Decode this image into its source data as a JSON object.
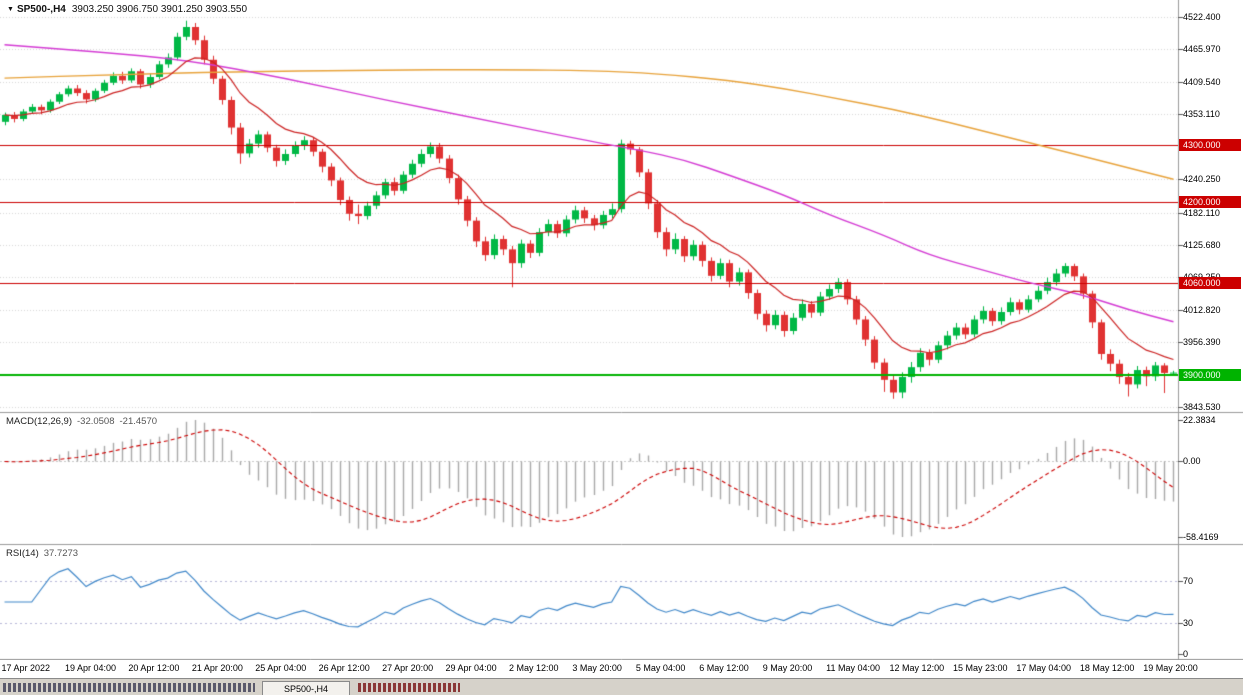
{
  "header": {
    "menu_icon": "▼",
    "symbol_period": "SP500-,H4",
    "ohlc": "3903.250 3906.750 3901.250 3903.550"
  },
  "colors": {
    "background": "#ffffff",
    "up": "#00b845",
    "down": "#e03232",
    "grid": "#d7d7d7",
    "separator": "#9a9a9a",
    "axis_text": "#000000",
    "macd_hist": "#a9a9a9",
    "macd_signal": "#cc0000",
    "macd_zero": "#c9c9c9",
    "rsi": "#3f87c9",
    "rsi_levels": "#b9b9d9"
  },
  "chart_data": {
    "type": "candlestick",
    "symbol": "SP500-",
    "timeframe": "H4",
    "y_axis": {
      "min": 3835,
      "max": 4552,
      "ticks": [
        {
          "price": 4522.4,
          "label": "4522.400"
        },
        {
          "price": 4465.97,
          "label": "4465.970"
        },
        {
          "price": 4409.54,
          "label": "4409.540"
        },
        {
          "price": 4353.11,
          "label": "4353.110"
        },
        {
          "price": 4240.25,
          "label": "4240.250"
        },
        {
          "price": 4182.11,
          "label": "4182.110"
        },
        {
          "price": 4125.68,
          "label": "4125.680"
        },
        {
          "price": 4069.25,
          "label": "4069.250"
        },
        {
          "price": 4012.82,
          "label": "4012.820"
        },
        {
          "price": 3956.39,
          "label": "3956.390"
        },
        {
          "price": 3843.53,
          "label": "3843.530"
        }
      ]
    },
    "x_labels": [
      {
        "index": 0,
        "label": "17 Apr 2022"
      },
      {
        "index": 7,
        "label": "19 Apr 04:00"
      },
      {
        "index": 14,
        "label": "20 Apr 12:00"
      },
      {
        "index": 21,
        "label": "21 Apr 20:00"
      },
      {
        "index": 28,
        "label": "25 Apr 04:00"
      },
      {
        "index": 35,
        "label": "26 Apr 12:00"
      },
      {
        "index": 42,
        "label": "27 Apr 20:00"
      },
      {
        "index": 49,
        "label": "29 Apr 04:00"
      },
      {
        "index": 56,
        "label": "2 May 12:00"
      },
      {
        "index": 63,
        "label": "3 May 20:00"
      },
      {
        "index": 70,
        "label": "5 May 04:00"
      },
      {
        "index": 77,
        "label": "6 May 12:00"
      },
      {
        "index": 84,
        "label": "9 May 20:00"
      },
      {
        "index": 91,
        "label": "11 May 04:00"
      },
      {
        "index": 98,
        "label": "12 May 12:00"
      },
      {
        "index": 105,
        "label": "15 May 23:00"
      },
      {
        "index": 112,
        "label": "17 May 04:00"
      },
      {
        "index": 119,
        "label": "18 May 12:00"
      },
      {
        "index": 126,
        "label": "19 May 20:00"
      }
    ],
    "candles": [
      [
        4340,
        4356,
        4334,
        4352
      ],
      [
        4352,
        4357,
        4339,
        4345
      ],
      [
        4345,
        4362,
        4341,
        4358
      ],
      [
        4358,
        4371,
        4354,
        4366
      ],
      [
        4366,
        4370,
        4353,
        4360
      ],
      [
        4360,
        4379,
        4356,
        4375
      ],
      [
        4375,
        4392,
        4371,
        4388
      ],
      [
        4388,
        4403,
        4384,
        4398
      ],
      [
        4398,
        4404,
        4385,
        4390
      ],
      [
        4390,
        4395,
        4372,
        4379
      ],
      [
        4379,
        4398,
        4375,
        4394
      ],
      [
        4394,
        4413,
        4390,
        4408
      ],
      [
        4408,
        4426,
        4404,
        4420
      ],
      [
        4420,
        4427,
        4406,
        4412
      ],
      [
        4412,
        4433,
        4408,
        4428
      ],
      [
        4428,
        4432,
        4398,
        4405
      ],
      [
        4405,
        4424,
        4399,
        4418
      ],
      [
        4418,
        4446,
        4414,
        4440
      ],
      [
        4440,
        4459,
        4434,
        4452
      ],
      [
        4452,
        4495,
        4447,
        4488
      ],
      [
        4488,
        4516,
        4482,
        4505
      ],
      [
        4505,
        4512,
        4474,
        4482
      ],
      [
        4482,
        4490,
        4440,
        4448
      ],
      [
        4448,
        4455,
        4406,
        4415
      ],
      [
        4415,
        4420,
        4370,
        4378
      ],
      [
        4378,
        4384,
        4318,
        4330
      ],
      [
        4330,
        4338,
        4267,
        4285
      ],
      [
        4285,
        4310,
        4278,
        4302
      ],
      [
        4302,
        4325,
        4295,
        4318
      ],
      [
        4318,
        4323,
        4287,
        4295
      ],
      [
        4295,
        4300,
        4262,
        4272
      ],
      [
        4272,
        4292,
        4265,
        4284
      ],
      [
        4284,
        4306,
        4279,
        4298
      ],
      [
        4298,
        4315,
        4291,
        4308
      ],
      [
        4308,
        4313,
        4280,
        4288
      ],
      [
        4288,
        4293,
        4252,
        4262
      ],
      [
        4262,
        4268,
        4228,
        4238
      ],
      [
        4238,
        4243,
        4195,
        4204
      ],
      [
        4204,
        4210,
        4168,
        4180
      ],
      [
        4180,
        4196,
        4162,
        4176
      ],
      [
        4176,
        4201,
        4170,
        4194
      ],
      [
        4194,
        4219,
        4188,
        4212
      ],
      [
        4212,
        4241,
        4206,
        4235
      ],
      [
        4235,
        4243,
        4212,
        4220
      ],
      [
        4220,
        4254,
        4215,
        4248
      ],
      [
        4248,
        4274,
        4242,
        4267
      ],
      [
        4267,
        4292,
        4261,
        4284
      ],
      [
        4284,
        4304,
        4278,
        4297
      ],
      [
        4297,
        4303,
        4268,
        4276
      ],
      [
        4276,
        4282,
        4233,
        4242
      ],
      [
        4242,
        4248,
        4196,
        4205
      ],
      [
        4205,
        4211,
        4158,
        4168
      ],
      [
        4168,
        4174,
        4122,
        4132
      ],
      [
        4132,
        4140,
        4098,
        4108
      ],
      [
        4108,
        4144,
        4101,
        4136
      ],
      [
        4136,
        4142,
        4108,
        4118
      ],
      [
        4118,
        4124,
        4052,
        4094
      ],
      [
        4094,
        4135,
        4086,
        4128
      ],
      [
        4128,
        4134,
        4103,
        4112
      ],
      [
        4112,
        4155,
        4106,
        4148
      ],
      [
        4148,
        4170,
        4141,
        4162
      ],
      [
        4162,
        4168,
        4138,
        4146
      ],
      [
        4146,
        4177,
        4140,
        4170
      ],
      [
        4170,
        4194,
        4163,
        4186
      ],
      [
        4186,
        4192,
        4164,
        4172
      ],
      [
        4172,
        4178,
        4151,
        4160
      ],
      [
        4160,
        4185,
        4154,
        4178
      ],
      [
        4178,
        4198,
        4172,
        4188
      ],
      [
        4188,
        4309,
        4182,
        4302
      ],
      [
        4302,
        4307,
        4283,
        4292
      ],
      [
        4292,
        4296,
        4244,
        4252
      ],
      [
        4252,
        4258,
        4188,
        4198
      ],
      [
        4198,
        4204,
        4138,
        4148
      ],
      [
        4148,
        4156,
        4106,
        4118
      ],
      [
        4118,
        4146,
        4110,
        4136
      ],
      [
        4136,
        4141,
        4096,
        4106
      ],
      [
        4106,
        4134,
        4099,
        4126
      ],
      [
        4126,
        4132,
        4088,
        4098
      ],
      [
        4098,
        4104,
        4062,
        4072
      ],
      [
        4072,
        4102,
        4066,
        4094
      ],
      [
        4094,
        4100,
        4052,
        4062
      ],
      [
        4062,
        4086,
        4055,
        4078
      ],
      [
        4078,
        4083,
        4032,
        4042
      ],
      [
        4042,
        4048,
        3996,
        4006
      ],
      [
        4006,
        4012,
        3975,
        3986
      ],
      [
        3986,
        4012,
        3979,
        4004
      ],
      [
        4004,
        4010,
        3966,
        3976
      ],
      [
        3976,
        4007,
        3970,
        3999
      ],
      [
        3999,
        4031,
        3994,
        4023
      ],
      [
        4023,
        4028,
        3999,
        4008
      ],
      [
        4008,
        4044,
        4002,
        4036
      ],
      [
        4036,
        4057,
        4030,
        4049
      ],
      [
        4049,
        4068,
        4042,
        4061
      ],
      [
        4061,
        4066,
        4022,
        4031
      ],
      [
        4031,
        4037,
        3987,
        3996
      ],
      [
        3996,
        4002,
        3950,
        3961
      ],
      [
        3961,
        3967,
        3910,
        3921
      ],
      [
        3921,
        3928,
        3870,
        3891
      ],
      [
        3891,
        3898,
        3858,
        3869
      ],
      [
        3869,
        3904,
        3859,
        3896
      ],
      [
        3896,
        3922,
        3886,
        3913
      ],
      [
        3913,
        3946,
        3905,
        3938
      ],
      [
        3938,
        3944,
        3916,
        3926
      ],
      [
        3926,
        3958,
        3920,
        3951
      ],
      [
        3951,
        3976,
        3944,
        3968
      ],
      [
        3968,
        3990,
        3961,
        3982
      ],
      [
        3982,
        3989,
        3962,
        3970
      ],
      [
        3970,
        4003,
        3965,
        3996
      ],
      [
        3996,
        4019,
        3989,
        4011
      ],
      [
        4011,
        4016,
        3985,
        3993
      ],
      [
        3993,
        4017,
        3987,
        4009
      ],
      [
        4009,
        4034,
        4003,
        4026
      ],
      [
        4026,
        4031,
        4005,
        4013
      ],
      [
        4013,
        4038,
        4008,
        4031
      ],
      [
        4031,
        4054,
        4026,
        4046
      ],
      [
        4046,
        4069,
        4040,
        4061
      ],
      [
        4061,
        4084,
        4055,
        4076
      ],
      [
        4076,
        4094,
        4070,
        4089
      ],
      [
        4089,
        4093,
        4063,
        4071
      ],
      [
        4071,
        4076,
        4032,
        4041
      ],
      [
        4041,
        4046,
        3981,
        3991
      ],
      [
        3991,
        3996,
        3926,
        3936
      ],
      [
        3936,
        3944,
        3906,
        3919
      ],
      [
        3919,
        3926,
        3884,
        3896
      ],
      [
        3896,
        3903,
        3862,
        3883
      ],
      [
        3883,
        3915,
        3876,
        3908
      ],
      [
        3908,
        3914,
        3880,
        3897
      ],
      [
        3897,
        3922,
        3889,
        3916
      ],
      [
        3916,
        3920,
        3868,
        3903
      ],
      [
        3903.25,
        3906.75,
        3901.25,
        3903.55
      ]
    ],
    "overlays": {
      "hlines": [
        {
          "price": 4300,
          "label": "4300.000",
          "color": "#cc0000",
          "width": 1
        },
        {
          "price": 4200,
          "label": "4200.000",
          "color": "#cc0000",
          "width": 1
        },
        {
          "price": 4060,
          "label": "4060.000",
          "color": "#cc0000",
          "width": 1
        },
        {
          "price": 3900,
          "label": "3900.000",
          "color": "#00b300",
          "width": 2
        }
      ],
      "ma_slow": {
        "color": "#e8a33b",
        "points": [
          [
            0,
            4416
          ],
          [
            12,
            4422
          ],
          [
            25,
            4427
          ],
          [
            40,
            4430
          ],
          [
            55,
            4431
          ],
          [
            65,
            4429
          ],
          [
            72,
            4424
          ],
          [
            80,
            4412
          ],
          [
            86,
            4398
          ],
          [
            92,
            4380
          ],
          [
            98,
            4362
          ],
          [
            104,
            4340
          ],
          [
            110,
            4316
          ],
          [
            116,
            4292
          ],
          [
            122,
            4268
          ],
          [
            129,
            4240
          ]
        ]
      },
      "ma_medium": {
        "color": "#d43bd4",
        "points": [
          [
            0,
            4474
          ],
          [
            10,
            4462
          ],
          [
            20,
            4448
          ],
          [
            31,
            4416
          ],
          [
            42,
            4378
          ],
          [
            53,
            4343
          ],
          [
            64,
            4308
          ],
          [
            70,
            4291
          ],
          [
            75,
            4274
          ],
          [
            80,
            4247
          ],
          [
            86,
            4213
          ],
          [
            91,
            4178
          ],
          [
            97,
            4143
          ],
          [
            102,
            4108
          ],
          [
            108,
            4082
          ],
          [
            113,
            4060
          ],
          [
            119,
            4039
          ],
          [
            124,
            4013
          ],
          [
            129,
            3992
          ]
        ]
      },
      "ma_fast": {
        "color": "#cc2222",
        "period": 10
      }
    },
    "indicators": [
      {
        "type": "MACD",
        "label": "MACD(12,26,9)",
        "fast": 12,
        "slow": 26,
        "signal": 9,
        "main_value": "-32.0508",
        "signal_value": "-21.4570",
        "ticks": {
          "max": "22.3834",
          "zero": "0.00",
          "min": "-58.4169"
        }
      },
      {
        "type": "RSI",
        "label": "RSI(14)",
        "period": 14,
        "value": "37.7273",
        "levels": [
          70,
          30
        ],
        "ticks": {
          "upper": "70",
          "lower": "30",
          "zero": "0"
        }
      }
    ]
  },
  "bottom_bar": {
    "active_tab": "SP500-,H4"
  }
}
